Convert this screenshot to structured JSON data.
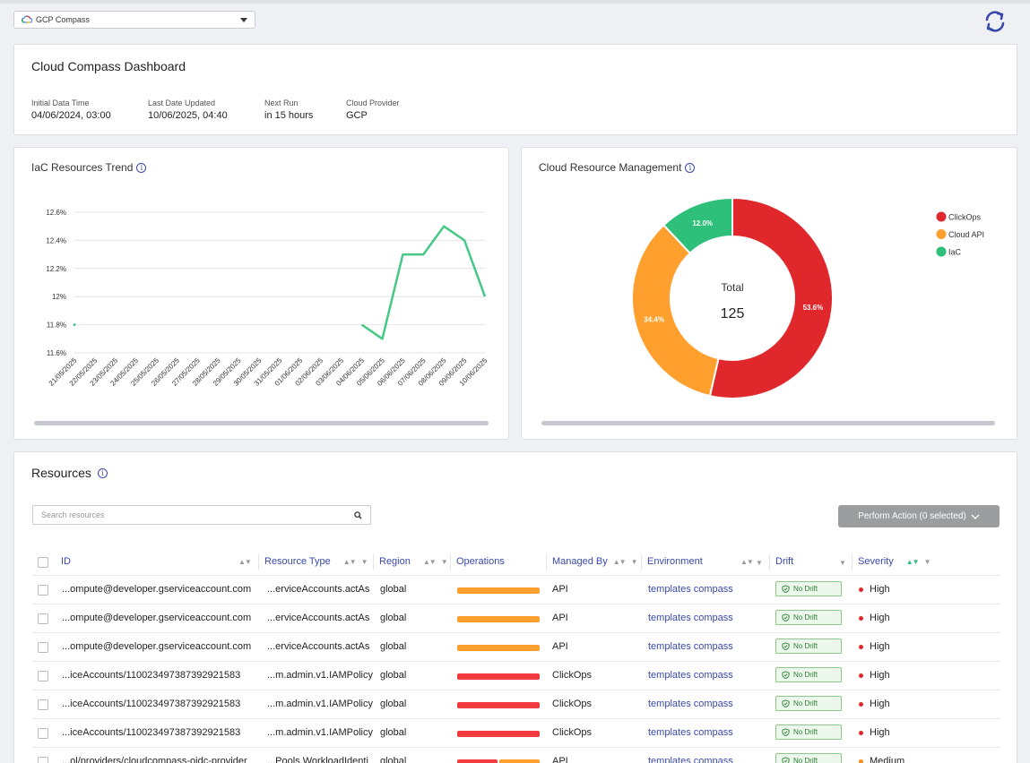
{
  "account": {
    "name": "GCP Compass"
  },
  "dashboard": {
    "title": "Cloud Compass Dashboard",
    "meta": [
      {
        "label": "Initial Data Time",
        "value": "04/06/2024, 03:00"
      },
      {
        "label": "Last Date Updated",
        "value": "10/06/2025, 04:40"
      },
      {
        "label": "Next Run",
        "value": "in 15 hours"
      },
      {
        "label": "Cloud Provider",
        "value": "GCP"
      }
    ]
  },
  "chart_data": [
    {
      "type": "line",
      "title": "IaC Resources Trend",
      "x": [
        "21/05/2025",
        "22/05/2025",
        "23/05/2025",
        "24/05/2025",
        "25/05/2025",
        "26/05/2025",
        "27/05/2025",
        "28/05/2025",
        "29/05/2025",
        "30/05/2025",
        "31/05/2025",
        "01/06/2025",
        "02/06/2025",
        "03/06/2025",
        "04/06/2025",
        "05/06/2025",
        "06/06/2025",
        "07/06/2025",
        "08/06/2025",
        "09/06/2025",
        "10/06/2025"
      ],
      "series": [
        {
          "values": [
            11.8,
            null,
            null,
            null,
            null,
            null,
            null,
            null,
            null,
            null,
            null,
            null,
            null,
            null,
            11.8,
            11.7,
            12.3,
            12.3,
            12.5,
            12.4,
            12.0
          ]
        }
      ],
      "y_ticks": [
        "11.6%",
        "11.8%",
        "12%",
        "12.2%",
        "12.4%",
        "12.6%"
      ],
      "ylim": [
        11.6,
        12.6
      ],
      "grid": true,
      "color": "#45c985"
    },
    {
      "type": "pie",
      "title": "Cloud Resource Management",
      "center_label": "Total",
      "center_value": "125",
      "slices": [
        {
          "name": "ClickOps",
          "value": 53.6,
          "label": "53.6%",
          "color": "#e0272c"
        },
        {
          "name": "Cloud API",
          "value": 34.4,
          "label": "34.4%",
          "color": "#ffa02e"
        },
        {
          "name": "IaC",
          "value": 12.0,
          "label": "12.0%",
          "color": "#2ebf7a"
        }
      ],
      "legend": "top-right"
    }
  ],
  "resources": {
    "title": "Resources",
    "search_placeholder": "Search resources",
    "perform_action": "Perform Action (0 selected)",
    "columns": [
      "ID",
      "Resource Type",
      "Region",
      "Operations",
      "Managed By",
      "Environment",
      "Drift",
      "Severity"
    ],
    "rows": [
      {
        "id": "...ompute@developer.gserviceaccount.com",
        "type": "...erviceAccounts.actAs",
        "region": "global",
        "ops": "orange",
        "managed": "API",
        "env": "templates compass",
        "drift": "No Drift",
        "severity": "High"
      },
      {
        "id": "...ompute@developer.gserviceaccount.com",
        "type": "...erviceAccounts.actAs",
        "region": "global",
        "ops": "orange",
        "managed": "API",
        "env": "templates compass",
        "drift": "No Drift",
        "severity": "High"
      },
      {
        "id": "...ompute@developer.gserviceaccount.com",
        "type": "...erviceAccounts.actAs",
        "region": "global",
        "ops": "orange",
        "managed": "API",
        "env": "templates compass",
        "drift": "No Drift",
        "severity": "High"
      },
      {
        "id": "...iceAccounts/110023497387392921583",
        "type": "...m.admin.v1.IAMPolicy",
        "region": "global",
        "ops": "red",
        "managed": "ClickOps",
        "env": "templates compass",
        "drift": "No Drift",
        "severity": "High"
      },
      {
        "id": "...iceAccounts/110023497387392921583",
        "type": "...m.admin.v1.IAMPolicy",
        "region": "global",
        "ops": "red",
        "managed": "ClickOps",
        "env": "templates compass",
        "drift": "No Drift",
        "severity": "High"
      },
      {
        "id": "...iceAccounts/110023497387392921583",
        "type": "...m.admin.v1.IAMPolicy",
        "region": "global",
        "ops": "red",
        "managed": "ClickOps",
        "env": "templates compass",
        "drift": "No Drift",
        "severity": "High"
      },
      {
        "id": "...ol/providers/cloudcompass-oidc-provider",
        "type": "...Pools.WorkloadIdenti",
        "region": "global",
        "ops": "split",
        "managed": "API",
        "env": "templates compass",
        "drift": "No Drift",
        "severity": "Medium"
      }
    ],
    "colors": {
      "orange": "#ffa02e",
      "red": "#f23a3f",
      "high": "#e0272c",
      "medium": "#ff8c1a"
    }
  }
}
